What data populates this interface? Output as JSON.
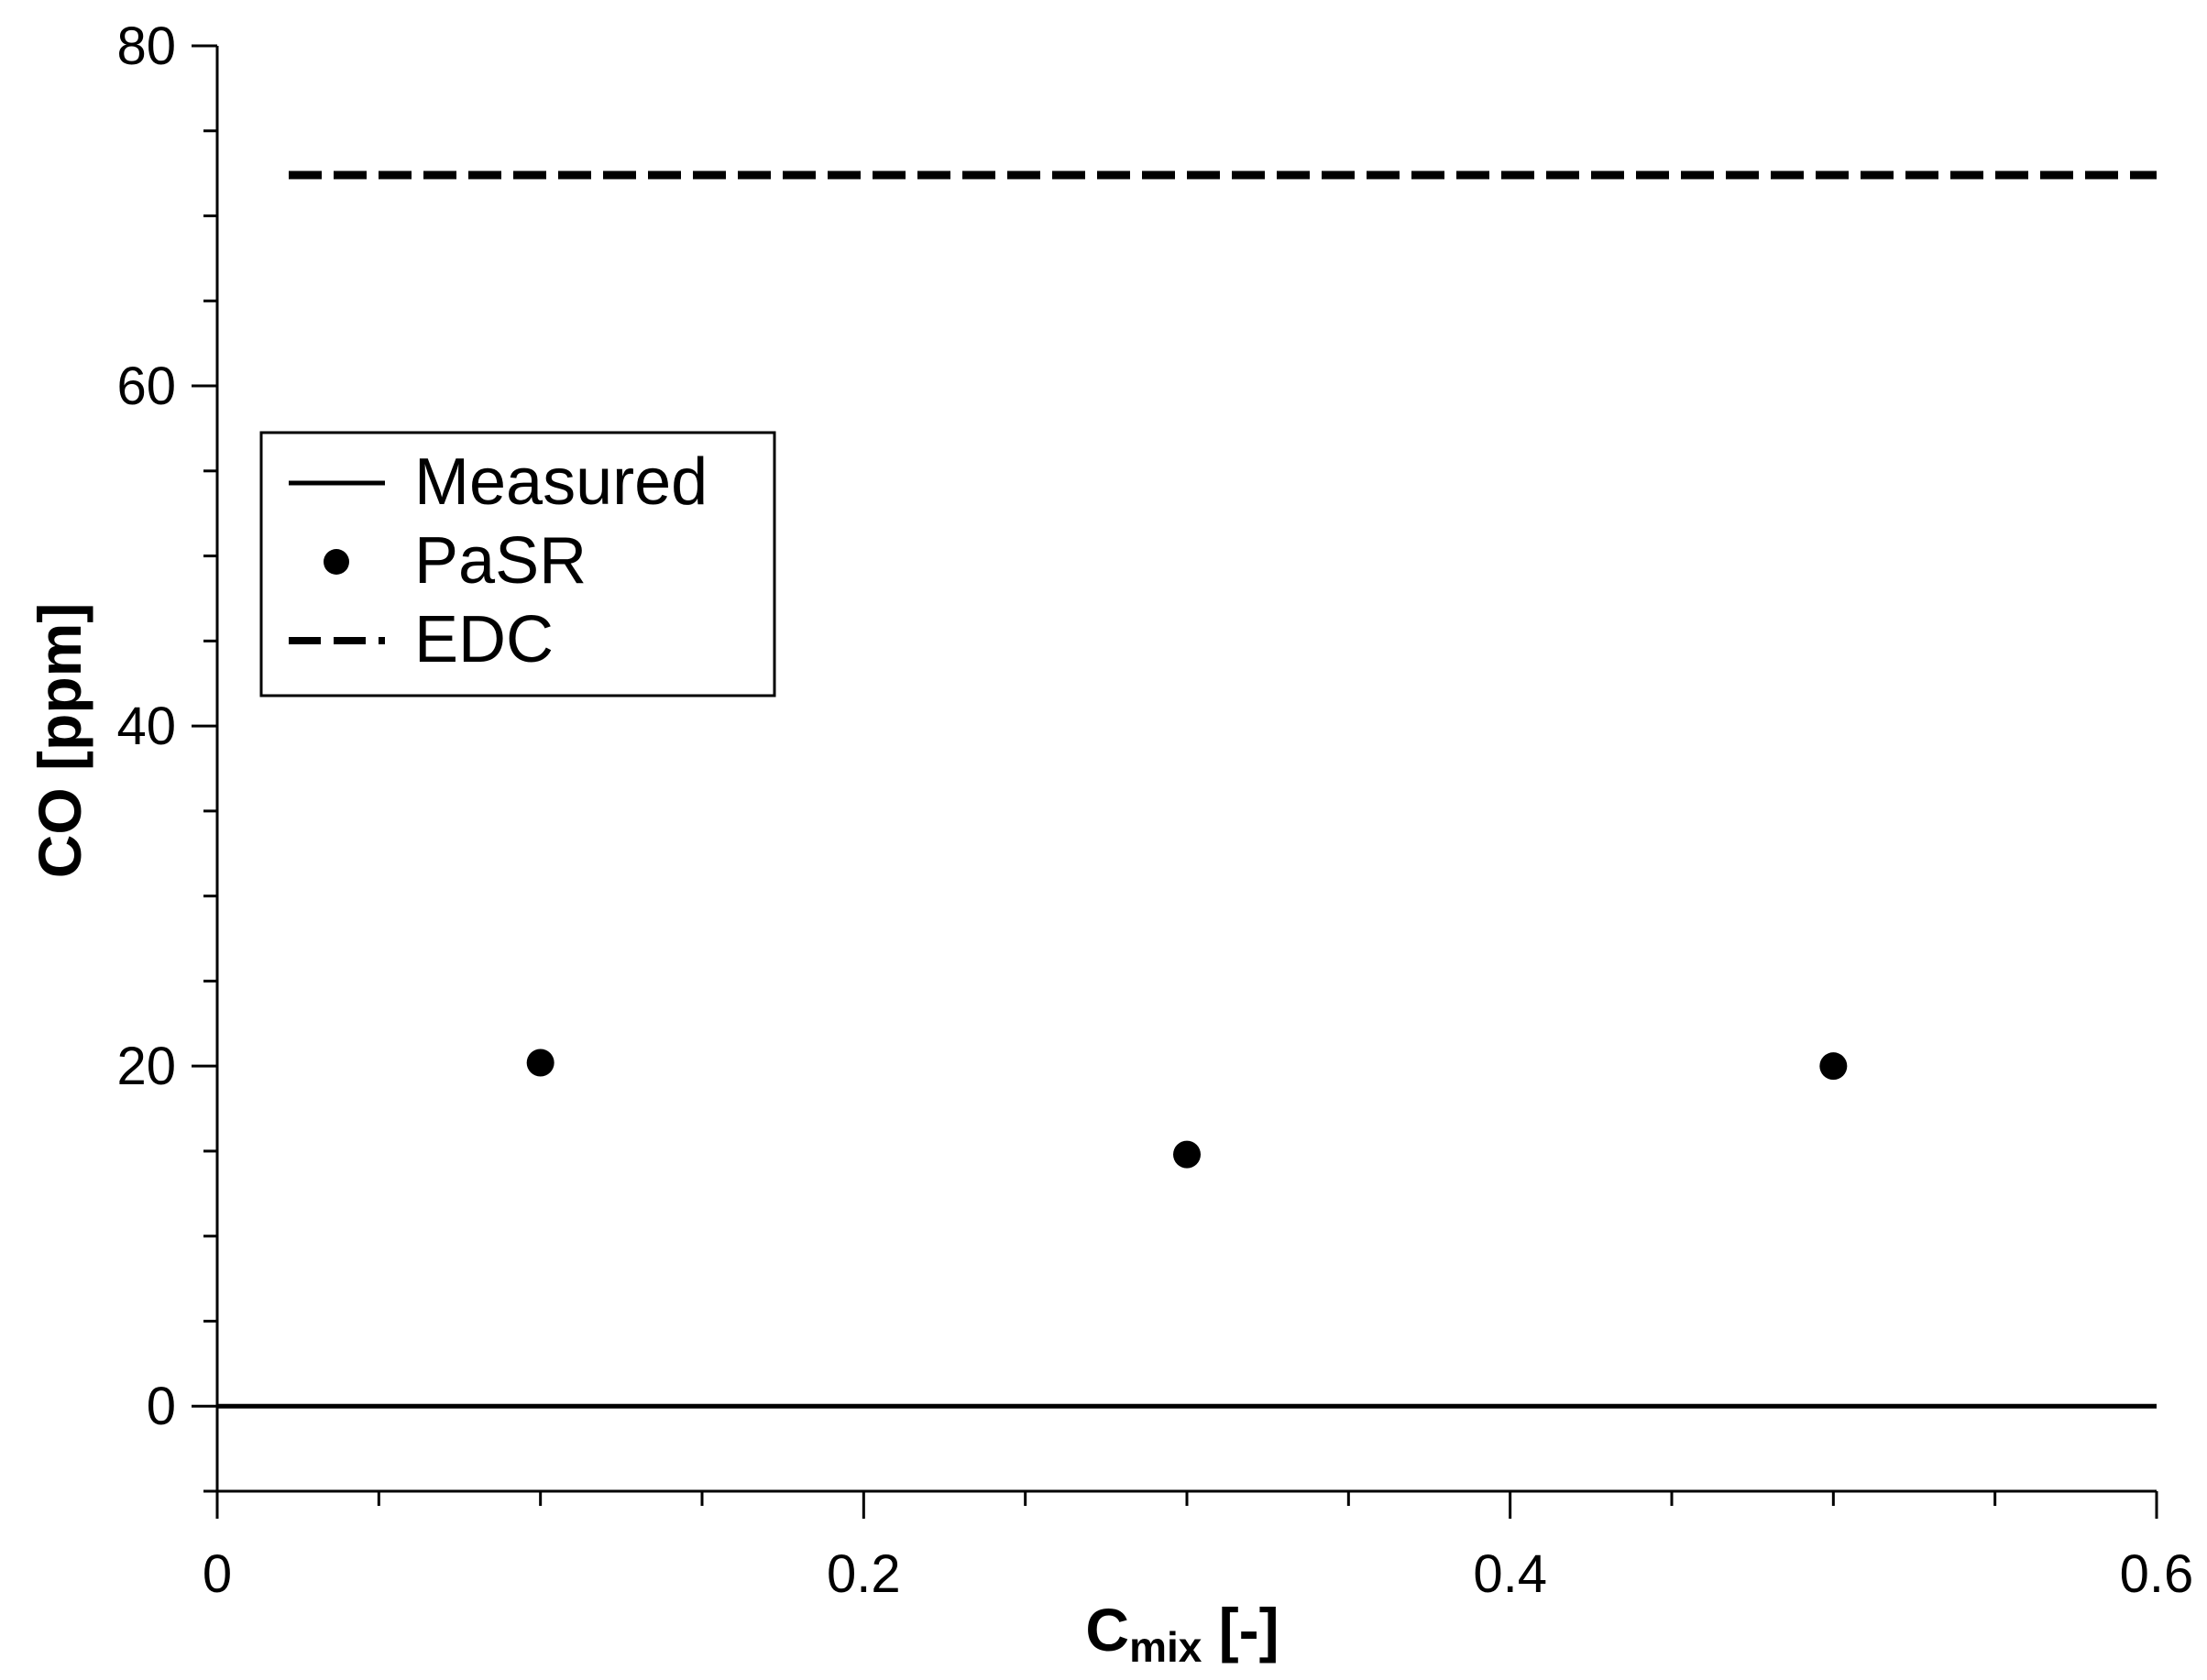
{
  "chart_data": {
    "type": "scatter",
    "xlabel_main": "C",
    "xlabel_sub": "mix",
    "xlabel_tail": " [-]",
    "ylabel": "CO [ppm]",
    "xlim": [
      0,
      0.6
    ],
    "ylim": [
      -5,
      80
    ],
    "x_ticks": [
      0,
      0.2,
      0.4,
      0.6
    ],
    "x_tick_labels": [
      "0",
      "0.2",
      "0.4",
      "0.6"
    ],
    "x_minor_step": 0.05,
    "y_ticks": [
      0,
      20,
      40,
      60,
      80
    ],
    "y_tick_labels": [
      "0",
      "20",
      "40",
      "60",
      "80"
    ],
    "y_minor_step": 5,
    "grid": false,
    "legend_position": "upper-left",
    "series": [
      {
        "name": "Measured",
        "style": "solid-line",
        "y": 0
      },
      {
        "name": "PaSR",
        "style": "markers",
        "x": [
          0.1,
          0.3,
          0.5
        ],
        "values": [
          20.2,
          14.8,
          20.0
        ]
      },
      {
        "name": "EDC",
        "style": "dashed-line",
        "y": 72.4
      }
    ],
    "colors": {
      "line": "#000000",
      "background": "#ffffff"
    }
  }
}
